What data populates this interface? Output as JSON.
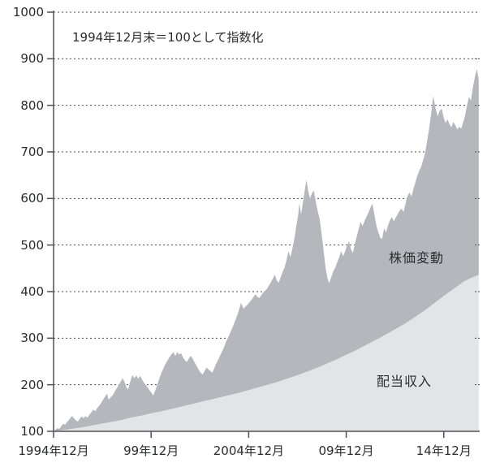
{
  "chart_data": {
    "type": "area",
    "stacked": true,
    "title": "",
    "annotation": "1994年12月末＝100として指数化",
    "base_value": 100,
    "grid": "dotted horizontal gridlines every 100",
    "legend_position": "labels drawn inside areas",
    "colors": {
      "price_area": "#b5b7bc",
      "dividend_area": "#e3e4e6",
      "axis": "#515256",
      "gridline": "#4c4d51",
      "text": "#2b2c2e"
    },
    "x_axis": {
      "label": "",
      "range_years": [
        1994.96,
        2016.8
      ],
      "tick_years": [
        1994.96,
        1999.96,
        2004.96,
        2009.96,
        2014.96
      ],
      "tick_labels": [
        "1994年12月",
        "99年12月",
        "2004年12月",
        "09年12月",
        "14年12月"
      ]
    },
    "y_axis": {
      "label": "",
      "range": [
        100,
        1000
      ],
      "tick_step": 100,
      "tick_labels": [
        "100",
        "200",
        "300",
        "400",
        "500",
        "600",
        "700",
        "800",
        "900",
        "1000"
      ]
    },
    "series": [
      {
        "name": "株価変動",
        "description": "upper boundary = total index (price change stacked on dividend income), Dec 1994 = 100",
        "area_color": "#b5b7bc",
        "points": [
          [
            1994.96,
            100
          ],
          [
            1995.05,
            103
          ],
          [
            1995.15,
            107
          ],
          [
            1995.25,
            105
          ],
          [
            1995.35,
            111
          ],
          [
            1995.45,
            116
          ],
          [
            1995.55,
            114
          ],
          [
            1995.65,
            120
          ],
          [
            1995.75,
            125
          ],
          [
            1995.85,
            130
          ],
          [
            1995.92,
            133
          ],
          [
            1996.0,
            128
          ],
          [
            1996.1,
            124
          ],
          [
            1996.2,
            121
          ],
          [
            1996.3,
            127
          ],
          [
            1996.4,
            132
          ],
          [
            1996.5,
            128
          ],
          [
            1996.6,
            133
          ],
          [
            1996.7,
            129
          ],
          [
            1996.8,
            136
          ],
          [
            1996.9,
            141
          ],
          [
            1997.0,
            147
          ],
          [
            1997.1,
            143
          ],
          [
            1997.2,
            150
          ],
          [
            1997.3,
            155
          ],
          [
            1997.4,
            161
          ],
          [
            1997.5,
            168
          ],
          [
            1997.6,
            175
          ],
          [
            1997.7,
            181
          ],
          [
            1997.78,
            168
          ],
          [
            1997.9,
            174
          ],
          [
            1998.0,
            178
          ],
          [
            1998.1,
            186
          ],
          [
            1998.2,
            193
          ],
          [
            1998.3,
            199
          ],
          [
            1998.4,
            207
          ],
          [
            1998.5,
            214
          ],
          [
            1998.6,
            206
          ],
          [
            1998.7,
            194
          ],
          [
            1998.78,
            190
          ],
          [
            1998.9,
            208
          ],
          [
            1999.0,
            221
          ],
          [
            1999.1,
            214
          ],
          [
            1999.2,
            220
          ],
          [
            1999.3,
            213
          ],
          [
            1999.4,
            219
          ],
          [
            1999.5,
            211
          ],
          [
            1999.6,
            204
          ],
          [
            1999.7,
            199
          ],
          [
            1999.8,
            193
          ],
          [
            1999.9,
            187
          ],
          [
            2000.0,
            181
          ],
          [
            2000.07,
            177
          ],
          [
            2000.2,
            191
          ],
          [
            2000.3,
            203
          ],
          [
            2000.4,
            216
          ],
          [
            2000.5,
            227
          ],
          [
            2000.6,
            236
          ],
          [
            2000.7,
            245
          ],
          [
            2000.8,
            252
          ],
          [
            2000.9,
            259
          ],
          [
            2001.0,
            265
          ],
          [
            2001.1,
            270
          ],
          [
            2001.2,
            262
          ],
          [
            2001.3,
            270
          ],
          [
            2001.4,
            265
          ],
          [
            2001.5,
            268
          ],
          [
            2001.6,
            258
          ],
          [
            2001.7,
            252
          ],
          [
            2001.8,
            249
          ],
          [
            2001.9,
            257
          ],
          [
            2002.0,
            262
          ],
          [
            2002.1,
            255
          ],
          [
            2002.2,
            247
          ],
          [
            2002.3,
            240
          ],
          [
            2002.4,
            232
          ],
          [
            2002.5,
            226
          ],
          [
            2002.6,
            222
          ],
          [
            2002.7,
            230
          ],
          [
            2002.8,
            237
          ],
          [
            2002.9,
            233
          ],
          [
            2003.0,
            229
          ],
          [
            2003.1,
            226
          ],
          [
            2003.2,
            236
          ],
          [
            2003.3,
            246
          ],
          [
            2003.4,
            254
          ],
          [
            2003.5,
            263
          ],
          [
            2003.6,
            272
          ],
          [
            2003.7,
            281
          ],
          [
            2003.8,
            292
          ],
          [
            2003.9,
            301
          ],
          [
            2004.0,
            310
          ],
          [
            2004.1,
            320
          ],
          [
            2004.2,
            330
          ],
          [
            2004.3,
            341
          ],
          [
            2004.4,
            352
          ],
          [
            2004.5,
            366
          ],
          [
            2004.57,
            376
          ],
          [
            2004.7,
            363
          ],
          [
            2004.8,
            368
          ],
          [
            2004.9,
            372
          ],
          [
            2005.0,
            377
          ],
          [
            2005.1,
            382
          ],
          [
            2005.2,
            388
          ],
          [
            2005.3,
            394
          ],
          [
            2005.4,
            389
          ],
          [
            2005.5,
            386
          ],
          [
            2005.6,
            392
          ],
          [
            2005.7,
            398
          ],
          [
            2005.8,
            402
          ],
          [
            2005.9,
            406
          ],
          [
            2006.0,
            413
          ],
          [
            2006.1,
            420
          ],
          [
            2006.2,
            428
          ],
          [
            2006.3,
            436
          ],
          [
            2006.4,
            424
          ],
          [
            2006.5,
            419
          ],
          [
            2006.6,
            431
          ],
          [
            2006.7,
            442
          ],
          [
            2006.8,
            452
          ],
          [
            2006.9,
            468
          ],
          [
            2007.0,
            487
          ],
          [
            2007.1,
            474
          ],
          [
            2007.2,
            492
          ],
          [
            2007.3,
            513
          ],
          [
            2007.4,
            540
          ],
          [
            2007.5,
            565
          ],
          [
            2007.55,
            589
          ],
          [
            2007.65,
            566
          ],
          [
            2007.75,
            595
          ],
          [
            2007.85,
            622
          ],
          [
            2007.92,
            640
          ],
          [
            2008.0,
            618
          ],
          [
            2008.1,
            600
          ],
          [
            2008.2,
            611
          ],
          [
            2008.3,
            617
          ],
          [
            2008.4,
            592
          ],
          [
            2008.5,
            572
          ],
          [
            2008.6,
            556
          ],
          [
            2008.7,
            522
          ],
          [
            2008.8,
            488
          ],
          [
            2008.9,
            452
          ],
          [
            2009.0,
            428
          ],
          [
            2009.08,
            418
          ],
          [
            2009.2,
            432
          ],
          [
            2009.3,
            444
          ],
          [
            2009.4,
            452
          ],
          [
            2009.5,
            463
          ],
          [
            2009.6,
            474
          ],
          [
            2009.7,
            487
          ],
          [
            2009.8,
            476
          ],
          [
            2009.9,
            486
          ],
          [
            2010.0,
            498
          ],
          [
            2010.1,
            509
          ],
          [
            2010.2,
            491
          ],
          [
            2010.3,
            483
          ],
          [
            2010.4,
            502
          ],
          [
            2010.5,
            519
          ],
          [
            2010.6,
            535
          ],
          [
            2010.7,
            550
          ],
          [
            2010.8,
            541
          ],
          [
            2010.9,
            552
          ],
          [
            2011.0,
            561
          ],
          [
            2011.1,
            570
          ],
          [
            2011.2,
            580
          ],
          [
            2011.3,
            589
          ],
          [
            2011.4,
            566
          ],
          [
            2011.5,
            543
          ],
          [
            2011.6,
            528
          ],
          [
            2011.7,
            516
          ],
          [
            2011.8,
            513
          ],
          [
            2011.9,
            536
          ],
          [
            2012.0,
            527
          ],
          [
            2012.1,
            542
          ],
          [
            2012.2,
            553
          ],
          [
            2012.3,
            560
          ],
          [
            2012.4,
            551
          ],
          [
            2012.5,
            559
          ],
          [
            2012.6,
            566
          ],
          [
            2012.7,
            574
          ],
          [
            2012.8,
            578
          ],
          [
            2012.9,
            571
          ],
          [
            2013.0,
            590
          ],
          [
            2013.1,
            605
          ],
          [
            2013.2,
            613
          ],
          [
            2013.3,
            604
          ],
          [
            2013.4,
            620
          ],
          [
            2013.5,
            634
          ],
          [
            2013.6,
            648
          ],
          [
            2013.7,
            660
          ],
          [
            2013.8,
            668
          ],
          [
            2013.9,
            682
          ],
          [
            2014.0,
            697
          ],
          [
            2014.1,
            722
          ],
          [
            2014.2,
            748
          ],
          [
            2014.3,
            778
          ],
          [
            2014.42,
            820
          ],
          [
            2014.55,
            791
          ],
          [
            2014.65,
            776
          ],
          [
            2014.75,
            788
          ],
          [
            2014.85,
            793
          ],
          [
            2014.95,
            775
          ],
          [
            2015.05,
            762
          ],
          [
            2015.15,
            770
          ],
          [
            2015.25,
            760
          ],
          [
            2015.35,
            753
          ],
          [
            2015.45,
            764
          ],
          [
            2015.55,
            757
          ],
          [
            2015.65,
            748
          ],
          [
            2015.75,
            754
          ],
          [
            2015.85,
            750
          ],
          [
            2015.95,
            763
          ],
          [
            2016.05,
            778
          ],
          [
            2016.15,
            800
          ],
          [
            2016.25,
            818
          ],
          [
            2016.35,
            810
          ],
          [
            2016.45,
            838
          ],
          [
            2016.55,
            860
          ],
          [
            2016.65,
            878
          ],
          [
            2016.75,
            856
          ]
        ]
      },
      {
        "name": "配当収入",
        "description": "cumulative dividend income index, Dec 1994 = 100",
        "area_color": "#e3e4e6",
        "points": [
          [
            1994.96,
            100
          ],
          [
            1995.5,
            103
          ],
          [
            1996.0,
            106
          ],
          [
            1996.5,
            109
          ],
          [
            1997.0,
            113
          ],
          [
            1997.5,
            117
          ],
          [
            1998.0,
            121
          ],
          [
            1998.5,
            125
          ],
          [
            1999.0,
            130
          ],
          [
            1999.5,
            134
          ],
          [
            2000.0,
            139
          ],
          [
            2000.5,
            143
          ],
          [
            2001.0,
            148
          ],
          [
            2001.5,
            153
          ],
          [
            2002.0,
            158
          ],
          [
            2002.5,
            163
          ],
          [
            2003.0,
            168
          ],
          [
            2003.5,
            173
          ],
          [
            2004.0,
            178
          ],
          [
            2004.5,
            183
          ],
          [
            2005.0,
            189
          ],
          [
            2005.5,
            195
          ],
          [
            2006.0,
            201
          ],
          [
            2006.5,
            207
          ],
          [
            2007.0,
            214
          ],
          [
            2007.5,
            221
          ],
          [
            2008.0,
            229
          ],
          [
            2008.5,
            237
          ],
          [
            2009.0,
            246
          ],
          [
            2009.5,
            255
          ],
          [
            2010.0,
            265
          ],
          [
            2010.5,
            275
          ],
          [
            2011.0,
            286
          ],
          [
            2011.5,
            297
          ],
          [
            2012.0,
            308
          ],
          [
            2012.5,
            320
          ],
          [
            2013.0,
            332
          ],
          [
            2013.5,
            346
          ],
          [
            2014.0,
            360
          ],
          [
            2014.5,
            376
          ],
          [
            2015.0,
            392
          ],
          [
            2015.5,
            407
          ],
          [
            2016.0,
            422
          ],
          [
            2016.4,
            430
          ],
          [
            2016.75,
            436
          ]
        ]
      }
    ]
  },
  "labels": {
    "price_area": "株価変動",
    "dividend_area": "配当収入"
  }
}
